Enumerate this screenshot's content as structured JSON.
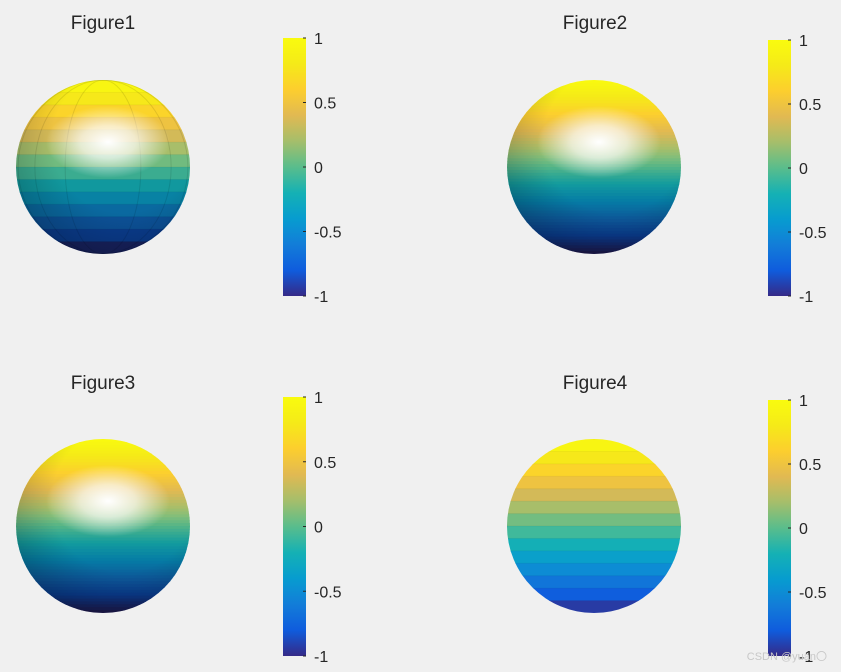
{
  "figures": [
    {
      "title": "Figure1",
      "shading": "flat",
      "lighting": "specular",
      "colorbar": {
        "colormap": "parula",
        "clim": [
          -1,
          1
        ],
        "ticks": [
          1,
          0.5,
          0,
          -0.5,
          -1
        ],
        "tick_labels": [
          "1",
          "0.5",
          "0",
          "-0.5",
          "-1"
        ]
      }
    },
    {
      "title": "Figure2",
      "shading": "interp",
      "lighting": "specular",
      "colorbar": {
        "colormap": "parula",
        "clim": [
          -1,
          1
        ],
        "ticks": [
          1,
          0.5,
          0,
          -0.5,
          -1
        ],
        "tick_labels": [
          "1",
          "0.5",
          "0",
          "-0.5",
          "-1"
        ]
      }
    },
    {
      "title": "Figure3",
      "shading": "interp",
      "lighting": "specular",
      "colorbar": {
        "colormap": "parula",
        "clim": [
          -1,
          1
        ],
        "ticks": [
          1,
          0.5,
          0,
          -0.5,
          -1
        ],
        "tick_labels": [
          "1",
          "0.5",
          "0",
          "-0.5",
          "-1"
        ]
      }
    },
    {
      "title": "Figure4",
      "shading": "flat",
      "lighting": "none",
      "colorbar": {
        "colormap": "parula",
        "clim": [
          -1,
          1
        ],
        "ticks": [
          1,
          0.5,
          0,
          -0.5,
          -1
        ],
        "tick_labels": [
          "1",
          "0.5",
          "0",
          "-0.5",
          "-1"
        ]
      }
    }
  ],
  "colors": {
    "background": "#f0f0f0",
    "text": "#262626"
  },
  "watermark": "CSDN @yuan〇",
  "chart_data": [
    {
      "type": "surface",
      "title": "Figure1",
      "surface": "unit sphere",
      "color_variable": "z",
      "clim": [
        -1,
        1
      ],
      "colorbar_ticks": [
        -1,
        -0.5,
        0,
        0.5,
        1
      ]
    },
    {
      "type": "surface",
      "title": "Figure2",
      "surface": "unit sphere",
      "color_variable": "z",
      "clim": [
        -1,
        1
      ],
      "colorbar_ticks": [
        -1,
        -0.5,
        0,
        0.5,
        1
      ]
    },
    {
      "type": "surface",
      "title": "Figure3",
      "surface": "unit sphere",
      "color_variable": "z",
      "clim": [
        -1,
        1
      ],
      "colorbar_ticks": [
        -1,
        -0.5,
        0,
        0.5,
        1
      ]
    },
    {
      "type": "surface",
      "title": "Figure4",
      "surface": "unit sphere",
      "color_variable": "z",
      "clim": [
        -1,
        1
      ],
      "colorbar_ticks": [
        -1,
        -0.5,
        0,
        0.5,
        1
      ]
    }
  ]
}
